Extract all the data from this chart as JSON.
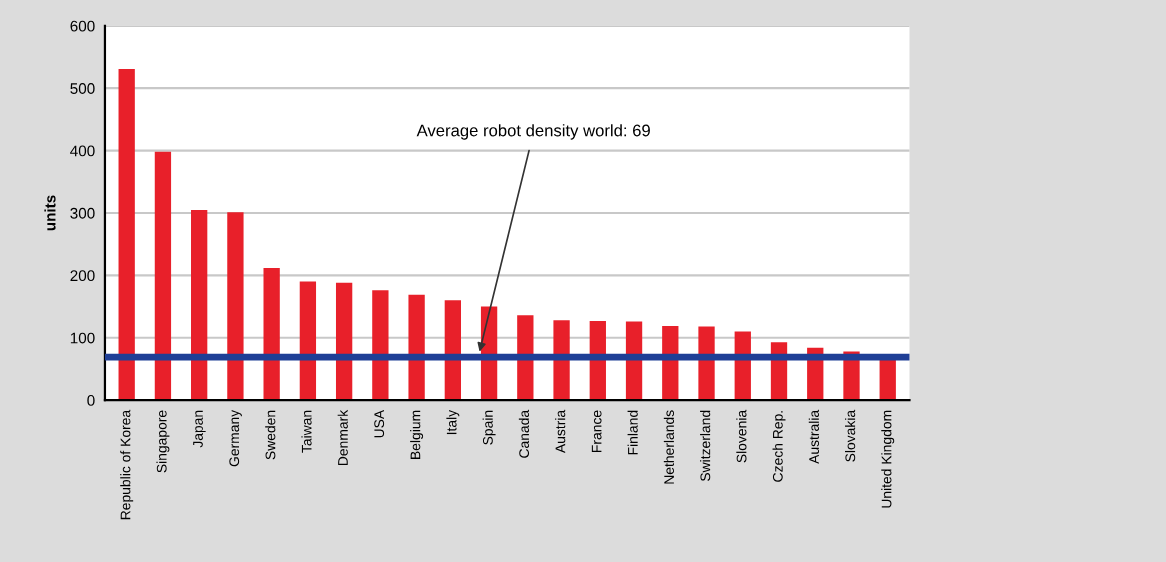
{
  "chart_data": {
    "type": "bar",
    "ylabel": "units",
    "categories": [
      "Republic of Korea",
      "Singapore",
      "Japan",
      "Germany",
      "Sweden",
      "Taiwan",
      "Denmark",
      "USA",
      "Belgium",
      "Italy",
      "Spain",
      "Canada",
      "Austria",
      "France",
      "Finland",
      "Netherlands",
      "Switzerland",
      "Slovenia",
      "Czech Rep.",
      "Australia",
      "Slovakia",
      "United Kingdom"
    ],
    "values": [
      531,
      398,
      305,
      301,
      212,
      190,
      188,
      176,
      169,
      160,
      150,
      136,
      128,
      127,
      126,
      119,
      118,
      110,
      93,
      84,
      78,
      71
    ],
    "color": "#e8202a",
    "ylim": [
      0,
      600
    ],
    "yticks": [
      0,
      100,
      200,
      300,
      400,
      500,
      600
    ],
    "grid": "y",
    "ref_lines": [
      {
        "axis": "y",
        "value": 69,
        "label": "Average robot density world: 69",
        "color": "#1f3f96"
      }
    ]
  }
}
